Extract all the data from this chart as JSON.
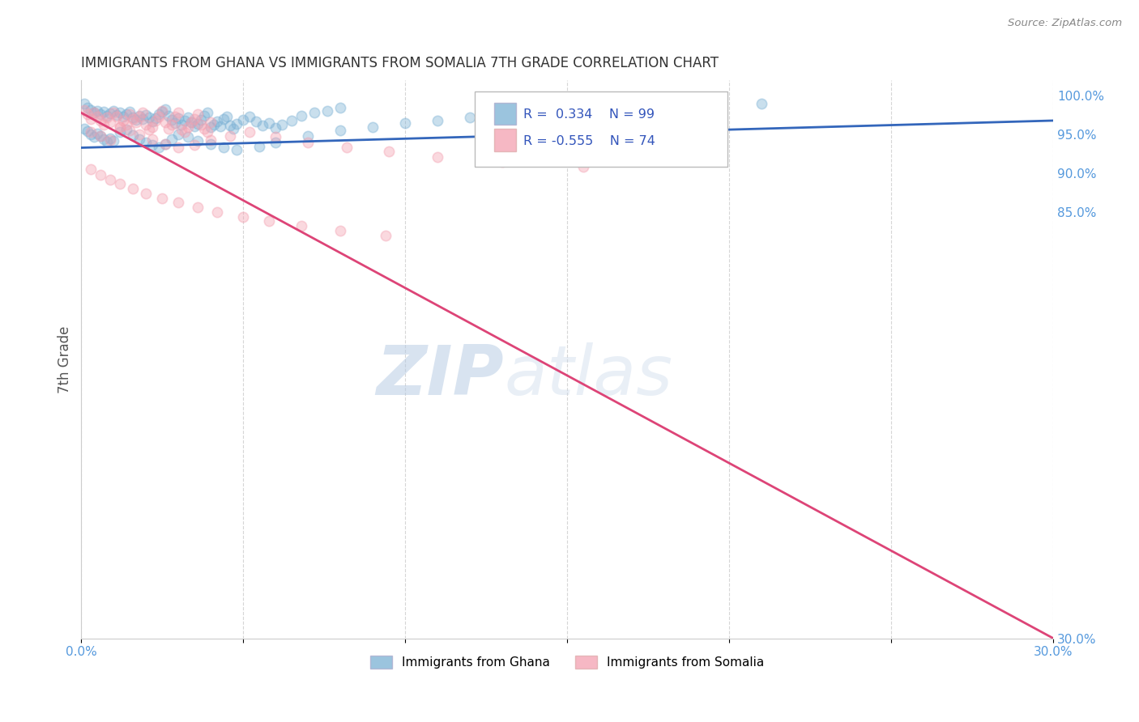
{
  "title": "IMMIGRANTS FROM GHANA VS IMMIGRANTS FROM SOMALIA 7TH GRADE CORRELATION CHART",
  "source": "Source: ZipAtlas.com",
  "ylabel": "7th Grade",
  "xlim": [
    0.0,
    0.3
  ],
  "ylim": [
    0.3,
    1.02
  ],
  "xticks": [
    0.0,
    0.05,
    0.1,
    0.15,
    0.2,
    0.25,
    0.3
  ],
  "xticklabels": [
    "0.0%",
    "",
    "",
    "",
    "",
    "",
    "30.0%"
  ],
  "yticks_right": [
    1.0,
    0.95,
    0.9,
    0.85,
    0.3
  ],
  "yticklabels_right": [
    "100.0%",
    "95.0%",
    "90.0%",
    "85.0%",
    "30.0%"
  ],
  "ghana_color": "#7ab0d4",
  "somalia_color": "#f4a0b0",
  "ghana_R": 0.334,
  "ghana_N": 99,
  "somalia_R": -0.555,
  "somalia_N": 74,
  "ghana_line_color": "#3366bb",
  "somalia_line_color": "#dd4477",
  "legend_label_ghana": "Immigrants from Ghana",
  "legend_label_somalia": "Immigrants from Somalia",
  "ghana_x": [
    0.001,
    0.002,
    0.003,
    0.004,
    0.005,
    0.006,
    0.007,
    0.008,
    0.009,
    0.01,
    0.011,
    0.012,
    0.013,
    0.014,
    0.015,
    0.016,
    0.017,
    0.018,
    0.019,
    0.02,
    0.021,
    0.022,
    0.023,
    0.024,
    0.025,
    0.026,
    0.027,
    0.028,
    0.029,
    0.03,
    0.031,
    0.032,
    0.033,
    0.034,
    0.035,
    0.036,
    0.037,
    0.038,
    0.039,
    0.04,
    0.041,
    0.042,
    0.043,
    0.044,
    0.045,
    0.046,
    0.047,
    0.048,
    0.05,
    0.052,
    0.054,
    0.056,
    0.058,
    0.06,
    0.062,
    0.065,
    0.068,
    0.072,
    0.076,
    0.08,
    0.001,
    0.002,
    0.003,
    0.004,
    0.005,
    0.006,
    0.007,
    0.008,
    0.009,
    0.01,
    0.012,
    0.014,
    0.016,
    0.018,
    0.02,
    0.022,
    0.024,
    0.026,
    0.028,
    0.03,
    0.033,
    0.036,
    0.04,
    0.044,
    0.048,
    0.055,
    0.06,
    0.07,
    0.08,
    0.09,
    0.1,
    0.11,
    0.12,
    0.13,
    0.14,
    0.155,
    0.17,
    0.19,
    0.21
  ],
  "ghana_y": [
    0.99,
    0.985,
    0.982,
    0.978,
    0.981,
    0.976,
    0.979,
    0.974,
    0.977,
    0.98,
    0.975,
    0.978,
    0.973,
    0.976,
    0.979,
    0.972,
    0.969,
    0.974,
    0.97,
    0.975,
    0.972,
    0.967,
    0.971,
    0.976,
    0.979,
    0.983,
    0.974,
    0.969,
    0.965,
    0.971,
    0.963,
    0.968,
    0.972,
    0.966,
    0.961,
    0.964,
    0.969,
    0.974,
    0.978,
    0.96,
    0.963,
    0.967,
    0.961,
    0.97,
    0.973,
    0.962,
    0.958,
    0.964,
    0.969,
    0.973,
    0.967,
    0.962,
    0.965,
    0.959,
    0.963,
    0.968,
    0.974,
    0.978,
    0.981,
    0.985,
    0.958,
    0.954,
    0.95,
    0.947,
    0.951,
    0.948,
    0.944,
    0.941,
    0.945,
    0.942,
    0.953,
    0.956,
    0.949,
    0.944,
    0.94,
    0.937,
    0.933,
    0.938,
    0.944,
    0.95,
    0.947,
    0.942,
    0.938,
    0.934,
    0.93,
    0.935,
    0.94,
    0.948,
    0.955,
    0.96,
    0.965,
    0.968,
    0.972,
    0.975,
    0.978,
    0.981,
    0.984,
    0.987,
    0.99
  ],
  "somalia_x": [
    0.001,
    0.002,
    0.003,
    0.004,
    0.005,
    0.006,
    0.007,
    0.008,
    0.009,
    0.01,
    0.011,
    0.012,
    0.013,
    0.014,
    0.015,
    0.016,
    0.017,
    0.018,
    0.019,
    0.02,
    0.021,
    0.022,
    0.023,
    0.024,
    0.025,
    0.026,
    0.027,
    0.028,
    0.029,
    0.03,
    0.031,
    0.032,
    0.033,
    0.034,
    0.035,
    0.036,
    0.037,
    0.038,
    0.039,
    0.04,
    0.003,
    0.006,
    0.009,
    0.012,
    0.015,
    0.018,
    0.022,
    0.026,
    0.03,
    0.035,
    0.04,
    0.046,
    0.052,
    0.06,
    0.07,
    0.082,
    0.095,
    0.11,
    0.13,
    0.155,
    0.003,
    0.006,
    0.009,
    0.012,
    0.016,
    0.02,
    0.025,
    0.03,
    0.036,
    0.042,
    0.05,
    0.058,
    0.068,
    0.08,
    0.094
  ],
  "somalia_y": [
    0.982,
    0.976,
    0.97,
    0.978,
    0.973,
    0.968,
    0.963,
    0.972,
    0.966,
    0.978,
    0.973,
    0.96,
    0.968,
    0.963,
    0.976,
    0.97,
    0.966,
    0.973,
    0.978,
    0.963,
    0.956,
    0.96,
    0.968,
    0.973,
    0.98,
    0.966,
    0.958,
    0.963,
    0.973,
    0.978,
    0.956,
    0.953,
    0.96,
    0.966,
    0.97,
    0.976,
    0.963,
    0.958,
    0.953,
    0.966,
    0.953,
    0.948,
    0.943,
    0.96,
    0.955,
    0.95,
    0.944,
    0.938,
    0.933,
    0.937,
    0.943,
    0.948,
    0.953,
    0.947,
    0.94,
    0.934,
    0.928,
    0.921,
    0.915,
    0.908,
    0.905,
    0.898,
    0.892,
    0.886,
    0.88,
    0.874,
    0.868,
    0.862,
    0.856,
    0.85,
    0.844,
    0.838,
    0.832,
    0.826,
    0.82
  ],
  "ghana_trend_x": [
    0.0,
    0.3
  ],
  "ghana_trend_y": [
    0.933,
    0.968
  ],
  "somalia_trend_x": [
    0.0,
    0.3
  ],
  "somalia_trend_y": [
    0.978,
    0.3
  ],
  "watermark_text": "ZIP",
  "watermark_text2": "atlas",
  "background_color": "#ffffff",
  "grid_color": "#cccccc",
  "title_color": "#333333",
  "axis_label_color": "#555555",
  "tick_label_color": "#5599dd",
  "marker_size": 80,
  "marker_alpha": 0.4,
  "line_width": 2.0
}
